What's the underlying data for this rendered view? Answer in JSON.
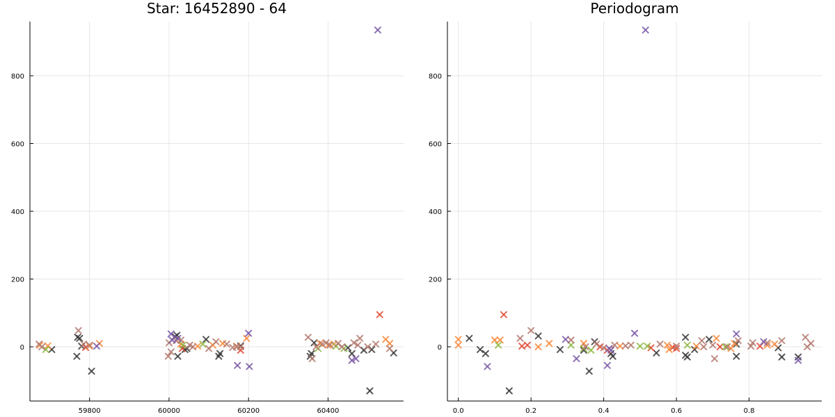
{
  "chart_data": [
    {
      "type": "scatter",
      "title": "Star: 16452890 - 64",
      "xlabel": "",
      "ylabel": "",
      "xlim": [
        59650,
        60590
      ],
      "ylim": [
        -160,
        960
      ],
      "xticks": [
        59800,
        60000,
        60200,
        60400
      ],
      "yticks": [
        0,
        200,
        400,
        600,
        800
      ],
      "grid": true,
      "legend": "none",
      "series": [
        {
          "color": "#3a3a3a",
          "points": [
            [
              59705,
              -8
            ],
            [
              59768,
              -28
            ],
            [
              59770,
              28
            ],
            [
              59775,
              25
            ],
            [
              59780,
              2
            ],
            [
              59805,
              -72
            ],
            [
              60015,
              30
            ],
            [
              60020,
              34
            ],
            [
              60022,
              -28
            ],
            [
              60040,
              -8
            ],
            [
              60045,
              -5
            ],
            [
              60093,
              22
            ],
            [
              60125,
              -28
            ],
            [
              60128,
              -20
            ],
            [
              60180,
              3
            ],
            [
              60355,
              -28
            ],
            [
              60358,
              -20
            ],
            [
              60365,
              12
            ],
            [
              60450,
              -3
            ],
            [
              60460,
              -20
            ],
            [
              60490,
              -10
            ],
            [
              60505,
              -130
            ],
            [
              60510,
              -8
            ],
            [
              60565,
              -18
            ]
          ]
        },
        {
          "color": "#e24a33",
          "points": [
            [
              59790,
              -2
            ],
            [
              60033,
              -5
            ],
            [
              60180,
              -10
            ],
            [
              60530,
              95
            ]
          ]
        },
        {
          "color": "#fb8b3d",
          "points": [
            [
              59675,
              5
            ],
            [
              59695,
              3
            ],
            [
              59800,
              2
            ],
            [
              59825,
              10
            ],
            [
              60030,
              8
            ],
            [
              60072,
              2
            ],
            [
              60110,
              5
            ],
            [
              60135,
              10
            ],
            [
              60170,
              2
            ],
            [
              60195,
              25
            ],
            [
              60380,
              10
            ],
            [
              60400,
              5
            ],
            [
              60415,
              8
            ],
            [
              60545,
              22
            ],
            [
              60555,
              10
            ]
          ]
        },
        {
          "color": "#8eba42",
          "points": [
            [
              59690,
              -8
            ],
            [
              60035,
              5
            ],
            [
              60085,
              8
            ],
            [
              60375,
              -5
            ],
            [
              60420,
              2
            ],
            [
              60440,
              -5
            ]
          ]
        },
        {
          "color": "#b47b70",
          "points": [
            [
              59673,
              8
            ],
            [
              59680,
              0
            ],
            [
              59772,
              48
            ],
            [
              59785,
              8
            ],
            [
              59800,
              5
            ],
            [
              59998,
              -28
            ],
            [
              60000,
              12
            ],
            [
              60005,
              -15
            ],
            [
              60018,
              18
            ],
            [
              60030,
              20
            ],
            [
              60052,
              5
            ],
            [
              60060,
              0
            ],
            [
              60100,
              -5
            ],
            [
              60118,
              15
            ],
            [
              60145,
              8
            ],
            [
              60160,
              -2
            ],
            [
              60170,
              0
            ],
            [
              60180,
              0
            ],
            [
              60350,
              28
            ],
            [
              60360,
              -35
            ],
            [
              60370,
              0
            ],
            [
              60385,
              8
            ],
            [
              60395,
              12
            ],
            [
              60405,
              5
            ],
            [
              60425,
              10
            ],
            [
              60435,
              0
            ],
            [
              60465,
              12
            ],
            [
              60475,
              5
            ],
            [
              60480,
              25
            ],
            [
              60500,
              0
            ],
            [
              60520,
              8
            ],
            [
              60555,
              -5
            ]
          ]
        },
        {
          "color": "#7b5aa6",
          "points": [
            [
              59818,
              2
            ],
            [
              60005,
              38
            ],
            [
              60008,
              20
            ],
            [
              60022,
              25
            ],
            [
              60172,
              -55
            ],
            [
              60200,
              40
            ],
            [
              60202,
              -58
            ],
            [
              60460,
              -40
            ],
            [
              60470,
              -35
            ],
            [
              60525,
              935
            ]
          ]
        }
      ]
    },
    {
      "type": "scatter",
      "title": "Periodogram",
      "xlabel": "",
      "ylabel": "",
      "xlim": [
        -0.03,
        1.0
      ],
      "ylim": [
        -160,
        960
      ],
      "xticks": [
        0.0,
        0.2,
        0.4,
        0.6,
        0.8
      ],
      "xtick_labels": [
        "0.0",
        "0.2",
        "0.4",
        "0.6",
        "0.8"
      ],
      "yticks": [
        0,
        200,
        400,
        600,
        800
      ],
      "grid": true,
      "legend": "none",
      "series": [
        {
          "color": "#3a3a3a",
          "points": [
            [
              0.03,
              25
            ],
            [
              0.06,
              -8
            ],
            [
              0.075,
              -20
            ],
            [
              0.14,
              -130
            ],
            [
              0.22,
              32
            ],
            [
              0.28,
              -8
            ],
            [
              0.345,
              -10
            ],
            [
              0.36,
              -72
            ],
            [
              0.375,
              15
            ],
            [
              0.42,
              -20
            ],
            [
              0.425,
              -28
            ],
            [
              0.545,
              -18
            ],
            [
              0.625,
              28
            ],
            [
              0.625,
              -25
            ],
            [
              0.63,
              -30
            ],
            [
              0.65,
              -8
            ],
            [
              0.69,
              22
            ],
            [
              0.765,
              -28
            ],
            [
              0.765,
              8
            ],
            [
              0.88,
              -3
            ],
            [
              0.89,
              -30
            ],
            [
              0.935,
              -30
            ]
          ]
        },
        {
          "color": "#e24a33",
          "points": [
            [
              0.125,
              95
            ],
            [
              0.175,
              2
            ],
            [
              0.19,
              5
            ],
            [
              0.39,
              0
            ],
            [
              0.41,
              -10
            ],
            [
              0.53,
              -3
            ],
            [
              0.59,
              -2
            ],
            [
              0.6,
              -5
            ],
            [
              0.72,
              0
            ],
            [
              0.83,
              2
            ]
          ]
        },
        {
          "color": "#fb8b3d",
          "points": [
            [
              0.0,
              5
            ],
            [
              0.0,
              22
            ],
            [
              0.1,
              20
            ],
            [
              0.115,
              20
            ],
            [
              0.22,
              0
            ],
            [
              0.25,
              10
            ],
            [
              0.345,
              10
            ],
            [
              0.445,
              2
            ],
            [
              0.575,
              5
            ],
            [
              0.58,
              -8
            ],
            [
              0.655,
              2
            ],
            [
              0.71,
              25
            ],
            [
              0.75,
              -5
            ],
            [
              0.76,
              10
            ],
            [
              0.85,
              5
            ],
            [
              0.87,
              8
            ]
          ]
        },
        {
          "color": "#8eba42",
          "points": [
            [
              0.11,
              5
            ],
            [
              0.31,
              5
            ],
            [
              0.345,
              -5
            ],
            [
              0.365,
              -10
            ],
            [
              0.5,
              2
            ],
            [
              0.52,
              2
            ],
            [
              0.63,
              5
            ],
            [
              0.735,
              0
            ]
          ]
        },
        {
          "color": "#b47b70",
          "points": [
            [
              0.17,
              25
            ],
            [
              0.2,
              48
            ],
            [
              0.31,
              20
            ],
            [
              0.35,
              0
            ],
            [
              0.38,
              8
            ],
            [
              0.4,
              -3
            ],
            [
              0.43,
              5
            ],
            [
              0.46,
              3
            ],
            [
              0.475,
              5
            ],
            [
              0.555,
              8
            ],
            [
              0.6,
              2
            ],
            [
              0.67,
              18
            ],
            [
              0.675,
              0
            ],
            [
              0.7,
              5
            ],
            [
              0.705,
              -35
            ],
            [
              0.74,
              0
            ],
            [
              0.77,
              18
            ],
            [
              0.805,
              2
            ],
            [
              0.81,
              12
            ],
            [
              0.85,
              12
            ],
            [
              0.89,
              18
            ],
            [
              0.955,
              28
            ],
            [
              0.96,
              0
            ],
            [
              0.97,
              10
            ]
          ]
        },
        {
          "color": "#7b5aa6",
          "points": [
            [
              0.08,
              -58
            ],
            [
              0.295,
              22
            ],
            [
              0.325,
              -35
            ],
            [
              0.41,
              -55
            ],
            [
              0.415,
              -5
            ],
            [
              0.42,
              -10
            ],
            [
              0.485,
              40
            ],
            [
              0.515,
              935
            ],
            [
              0.765,
              38
            ],
            [
              0.84,
              15
            ],
            [
              0.935,
              -40
            ]
          ]
        }
      ]
    }
  ]
}
